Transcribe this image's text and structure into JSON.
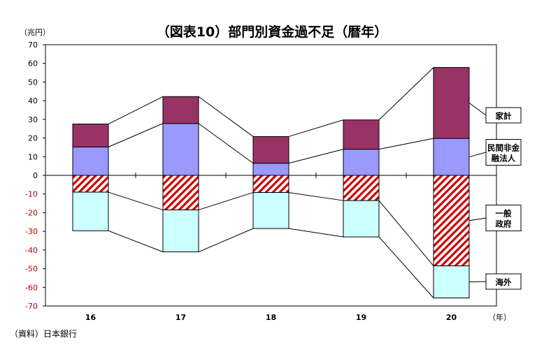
{
  "chart_data": {
    "type": "bar",
    "stacked": true,
    "title": "（図表10）部門別資金過不足（暦年）",
    "unit_label": "（兆円）",
    "x_unit_label": "（年）",
    "source": "（資料）日本銀行",
    "categories": [
      "16",
      "17",
      "18",
      "19",
      "20"
    ],
    "ylim": [
      -70,
      70
    ],
    "ytick_step": 10,
    "grid": false,
    "positive_tick_color": "#000000",
    "negative_tick_color": "#c00000",
    "series": [
      {
        "name": "民間非金融法人",
        "sign": "positive",
        "color": "#9999ff",
        "values": [
          15.2,
          27.8,
          6.5,
          14.0,
          19.8
        ]
      },
      {
        "name": "家計",
        "sign": "positive",
        "color": "#993366",
        "values": [
          12.3,
          14.4,
          14.3,
          15.7,
          38.0
        ]
      },
      {
        "name": "一般政府",
        "sign": "negative",
        "color": "#cc0000",
        "pattern": "hatch",
        "values": [
          -9.0,
          -18.5,
          -9.2,
          -13.5,
          -48.5
        ]
      },
      {
        "name": "海外",
        "sign": "negative",
        "color": "#ccffff",
        "values": [
          -20.7,
          -22.5,
          -19.3,
          -19.5,
          -17.2
        ]
      }
    ],
    "callouts": [
      {
        "series": "家計",
        "lines": [
          "家計"
        ]
      },
      {
        "series": "民間非金融法人",
        "lines": [
          "民間非金",
          "融法人"
        ]
      },
      {
        "series": "一般政府",
        "lines": [
          "一般",
          "政府"
        ]
      },
      {
        "series": "海外",
        "lines": [
          "海外"
        ]
      }
    ]
  }
}
